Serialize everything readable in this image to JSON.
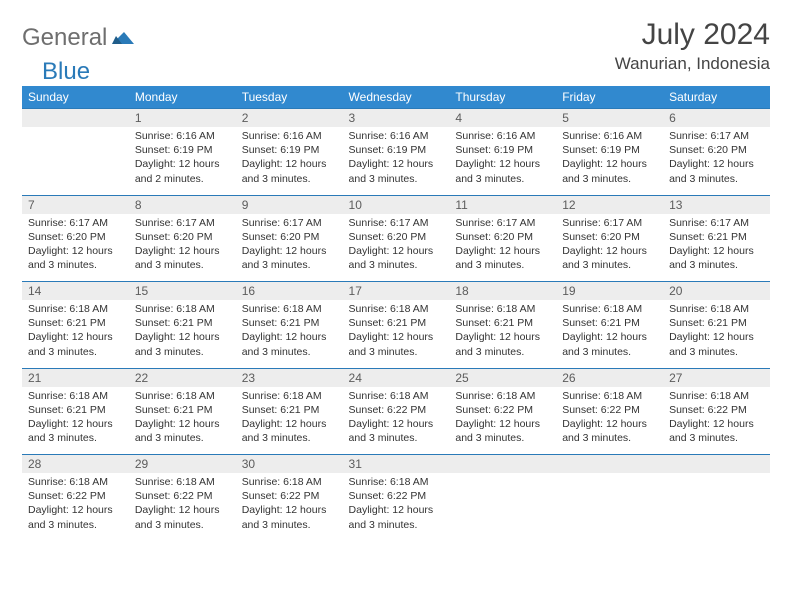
{
  "brand": {
    "general": "General",
    "blue": "Blue"
  },
  "title": "July 2024",
  "location": "Wanurian, Indonesia",
  "colors": {
    "header_bg": "#3189cf",
    "header_text": "#ffffff",
    "daynum_bg": "#ededed",
    "daynum_text": "#5c5c5c",
    "border": "#2a7ab8",
    "body_text": "#333333",
    "logo_gray": "#6e6e6e",
    "logo_blue": "#2a7ab8"
  },
  "day_headers": [
    "Sunday",
    "Monday",
    "Tuesday",
    "Wednesday",
    "Thursday",
    "Friday",
    "Saturday"
  ],
  "weeks": [
    [
      null,
      {
        "n": "1",
        "rise": "Sunrise: 6:16 AM",
        "set": "Sunset: 6:19 PM",
        "dl1": "Daylight: 12 hours",
        "dl2": "and 2 minutes."
      },
      {
        "n": "2",
        "rise": "Sunrise: 6:16 AM",
        "set": "Sunset: 6:19 PM",
        "dl1": "Daylight: 12 hours",
        "dl2": "and 3 minutes."
      },
      {
        "n": "3",
        "rise": "Sunrise: 6:16 AM",
        "set": "Sunset: 6:19 PM",
        "dl1": "Daylight: 12 hours",
        "dl2": "and 3 minutes."
      },
      {
        "n": "4",
        "rise": "Sunrise: 6:16 AM",
        "set": "Sunset: 6:19 PM",
        "dl1": "Daylight: 12 hours",
        "dl2": "and 3 minutes."
      },
      {
        "n": "5",
        "rise": "Sunrise: 6:16 AM",
        "set": "Sunset: 6:19 PM",
        "dl1": "Daylight: 12 hours",
        "dl2": "and 3 minutes."
      },
      {
        "n": "6",
        "rise": "Sunrise: 6:17 AM",
        "set": "Sunset: 6:20 PM",
        "dl1": "Daylight: 12 hours",
        "dl2": "and 3 minutes."
      }
    ],
    [
      {
        "n": "7",
        "rise": "Sunrise: 6:17 AM",
        "set": "Sunset: 6:20 PM",
        "dl1": "Daylight: 12 hours",
        "dl2": "and 3 minutes."
      },
      {
        "n": "8",
        "rise": "Sunrise: 6:17 AM",
        "set": "Sunset: 6:20 PM",
        "dl1": "Daylight: 12 hours",
        "dl2": "and 3 minutes."
      },
      {
        "n": "9",
        "rise": "Sunrise: 6:17 AM",
        "set": "Sunset: 6:20 PM",
        "dl1": "Daylight: 12 hours",
        "dl2": "and 3 minutes."
      },
      {
        "n": "10",
        "rise": "Sunrise: 6:17 AM",
        "set": "Sunset: 6:20 PM",
        "dl1": "Daylight: 12 hours",
        "dl2": "and 3 minutes."
      },
      {
        "n": "11",
        "rise": "Sunrise: 6:17 AM",
        "set": "Sunset: 6:20 PM",
        "dl1": "Daylight: 12 hours",
        "dl2": "and 3 minutes."
      },
      {
        "n": "12",
        "rise": "Sunrise: 6:17 AM",
        "set": "Sunset: 6:20 PM",
        "dl1": "Daylight: 12 hours",
        "dl2": "and 3 minutes."
      },
      {
        "n": "13",
        "rise": "Sunrise: 6:17 AM",
        "set": "Sunset: 6:21 PM",
        "dl1": "Daylight: 12 hours",
        "dl2": "and 3 minutes."
      }
    ],
    [
      {
        "n": "14",
        "rise": "Sunrise: 6:18 AM",
        "set": "Sunset: 6:21 PM",
        "dl1": "Daylight: 12 hours",
        "dl2": "and 3 minutes."
      },
      {
        "n": "15",
        "rise": "Sunrise: 6:18 AM",
        "set": "Sunset: 6:21 PM",
        "dl1": "Daylight: 12 hours",
        "dl2": "and 3 minutes."
      },
      {
        "n": "16",
        "rise": "Sunrise: 6:18 AM",
        "set": "Sunset: 6:21 PM",
        "dl1": "Daylight: 12 hours",
        "dl2": "and 3 minutes."
      },
      {
        "n": "17",
        "rise": "Sunrise: 6:18 AM",
        "set": "Sunset: 6:21 PM",
        "dl1": "Daylight: 12 hours",
        "dl2": "and 3 minutes."
      },
      {
        "n": "18",
        "rise": "Sunrise: 6:18 AM",
        "set": "Sunset: 6:21 PM",
        "dl1": "Daylight: 12 hours",
        "dl2": "and 3 minutes."
      },
      {
        "n": "19",
        "rise": "Sunrise: 6:18 AM",
        "set": "Sunset: 6:21 PM",
        "dl1": "Daylight: 12 hours",
        "dl2": "and 3 minutes."
      },
      {
        "n": "20",
        "rise": "Sunrise: 6:18 AM",
        "set": "Sunset: 6:21 PM",
        "dl1": "Daylight: 12 hours",
        "dl2": "and 3 minutes."
      }
    ],
    [
      {
        "n": "21",
        "rise": "Sunrise: 6:18 AM",
        "set": "Sunset: 6:21 PM",
        "dl1": "Daylight: 12 hours",
        "dl2": "and 3 minutes."
      },
      {
        "n": "22",
        "rise": "Sunrise: 6:18 AM",
        "set": "Sunset: 6:21 PM",
        "dl1": "Daylight: 12 hours",
        "dl2": "and 3 minutes."
      },
      {
        "n": "23",
        "rise": "Sunrise: 6:18 AM",
        "set": "Sunset: 6:21 PM",
        "dl1": "Daylight: 12 hours",
        "dl2": "and 3 minutes."
      },
      {
        "n": "24",
        "rise": "Sunrise: 6:18 AM",
        "set": "Sunset: 6:22 PM",
        "dl1": "Daylight: 12 hours",
        "dl2": "and 3 minutes."
      },
      {
        "n": "25",
        "rise": "Sunrise: 6:18 AM",
        "set": "Sunset: 6:22 PM",
        "dl1": "Daylight: 12 hours",
        "dl2": "and 3 minutes."
      },
      {
        "n": "26",
        "rise": "Sunrise: 6:18 AM",
        "set": "Sunset: 6:22 PM",
        "dl1": "Daylight: 12 hours",
        "dl2": "and 3 minutes."
      },
      {
        "n": "27",
        "rise": "Sunrise: 6:18 AM",
        "set": "Sunset: 6:22 PM",
        "dl1": "Daylight: 12 hours",
        "dl2": "and 3 minutes."
      }
    ],
    [
      {
        "n": "28",
        "rise": "Sunrise: 6:18 AM",
        "set": "Sunset: 6:22 PM",
        "dl1": "Daylight: 12 hours",
        "dl2": "and 3 minutes."
      },
      {
        "n": "29",
        "rise": "Sunrise: 6:18 AM",
        "set": "Sunset: 6:22 PM",
        "dl1": "Daylight: 12 hours",
        "dl2": "and 3 minutes."
      },
      {
        "n": "30",
        "rise": "Sunrise: 6:18 AM",
        "set": "Sunset: 6:22 PM",
        "dl1": "Daylight: 12 hours",
        "dl2": "and 3 minutes."
      },
      {
        "n": "31",
        "rise": "Sunrise: 6:18 AM",
        "set": "Sunset: 6:22 PM",
        "dl1": "Daylight: 12 hours",
        "dl2": "and 3 minutes."
      },
      null,
      null,
      null
    ]
  ]
}
